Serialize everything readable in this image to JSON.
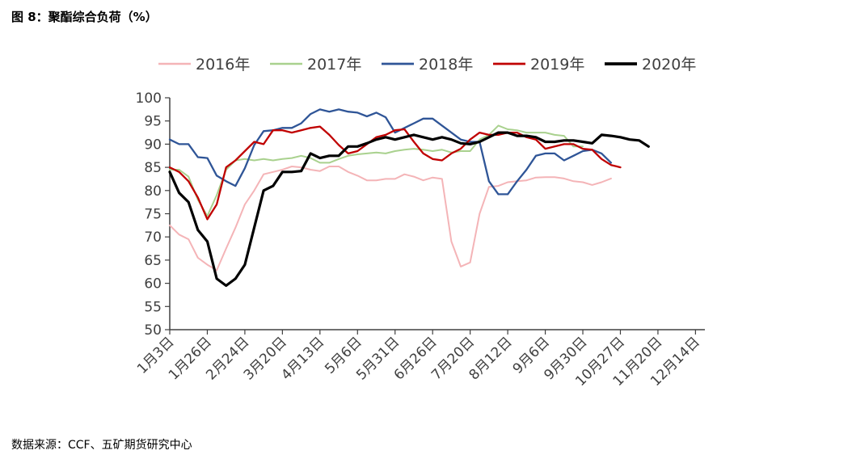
{
  "figure_title": "图 8：聚酯综合负荷（%）",
  "source": "数据来源：CCF、五矿期货研究中心",
  "chart_data": {
    "type": "line",
    "title": "图 8：聚酯综合负荷（%）",
    "xlabel": "",
    "ylabel": "",
    "ylim": [
      50,
      100
    ],
    "yticks": [
      "50",
      "55",
      "60",
      "65",
      "70",
      "75",
      "80",
      "85",
      "90",
      "95",
      "100"
    ],
    "x_tick_labels": [
      "1月3日",
      "1月26日",
      "2月24日",
      "3月20日",
      "4月13日",
      "5月6日",
      "5月31日",
      "6月26日",
      "7月20日",
      "8月12日",
      "9月6日",
      "9月30日",
      "10月27日",
      "11月20日",
      "12月14日"
    ],
    "x_tick_positions": [
      0,
      4,
      8,
      12,
      16,
      20,
      24,
      28,
      32,
      36,
      40,
      44,
      48,
      52,
      56
    ],
    "x_range": [
      0,
      57
    ],
    "grid": false,
    "legend_position": "top",
    "series": [
      {
        "name": "2016年",
        "color": "#f4b4b7",
        "width": 2,
        "values": [
          72.5,
          70.5,
          69.5,
          65.5,
          64,
          62.8,
          67.5,
          72,
          77,
          80,
          83.5,
          84,
          84.5,
          85.2,
          85,
          84.5,
          84.2,
          85.2,
          85.2,
          84,
          83.2,
          82.2,
          82.2,
          82.5,
          82.5,
          83.5,
          83,
          82.2,
          82.8,
          82.5,
          69,
          63.6,
          64.5,
          75,
          80.8,
          81,
          81.8,
          82,
          82.2,
          82.8,
          82.9,
          82.9,
          82.6,
          82,
          81.8,
          81.2,
          81.8,
          82.6
        ]
      },
      {
        "name": "2017年",
        "color": "#a9d18e",
        "width": 2,
        "values": [
          84.5,
          84.5,
          83,
          78,
          74.5,
          79,
          84.5,
          86.5,
          86.8,
          86.5,
          86.8,
          86.5,
          86.8,
          87,
          87.5,
          87,
          86,
          86,
          86.8,
          87.5,
          87.8,
          88,
          88.2,
          88,
          88.5,
          88.8,
          89,
          88.8,
          88.5,
          88.8,
          88.2,
          88.5,
          88.5,
          91,
          92,
          94,
          93.2,
          93,
          92.5,
          92.5,
          92.5,
          92,
          91.8,
          89.5,
          89.5
        ]
      },
      {
        "name": "2018年",
        "color": "#2f5597",
        "width": 2.3,
        "values": [
          91,
          90,
          90,
          87.2,
          87,
          83.2,
          82,
          81,
          84.8,
          89.8,
          92.8,
          93,
          93.5,
          93.5,
          94.5,
          96.5,
          97.5,
          97,
          97.5,
          97,
          96.8,
          96,
          96.8,
          95.8,
          92.5,
          93.5,
          94.5,
          95.5,
          95.5,
          94,
          92.5,
          91,
          90.5,
          90.5,
          82,
          79.2,
          79.2,
          82,
          84.5,
          87.5,
          88,
          88,
          86.5,
          87.5,
          88.5,
          88.8,
          88,
          86
        ]
      },
      {
        "name": "2019年",
        "color": "#c00000",
        "width": 2.3,
        "values": [
          85,
          84,
          82,
          78.5,
          73.8,
          77,
          85,
          86.5,
          88.5,
          90.5,
          90,
          93,
          93,
          92.5,
          93,
          93.5,
          93.8,
          92,
          89.8,
          88,
          88.5,
          90,
          91.5,
          92,
          93,
          93.2,
          90.5,
          88,
          86.8,
          86.5,
          88,
          89,
          91,
          92.5,
          92,
          92,
          92.5,
          92.5,
          91.5,
          91,
          89,
          89.5,
          90,
          90,
          89,
          88.8,
          86.8,
          85.5,
          85
        ]
      },
      {
        "name": "2020年",
        "color": "#000000",
        "width": 3.2,
        "values": [
          84,
          79.5,
          77.5,
          71.5,
          69,
          61,
          59.5,
          61,
          64,
          72,
          80,
          81,
          84,
          84,
          84.2,
          88,
          87,
          87.5,
          87.5,
          89.5,
          89.5,
          90.2,
          91,
          91.5,
          91,
          91.5,
          92,
          91.5,
          91,
          91.5,
          91,
          90.2,
          90,
          90.5,
          91.5,
          92.5,
          92.5,
          91.8,
          91.8,
          91.5,
          90.5,
          90.5,
          90.8,
          90.8,
          90.5,
          90.2,
          92,
          91.8,
          91.5,
          91,
          90.8,
          89.5
        ]
      }
    ]
  }
}
